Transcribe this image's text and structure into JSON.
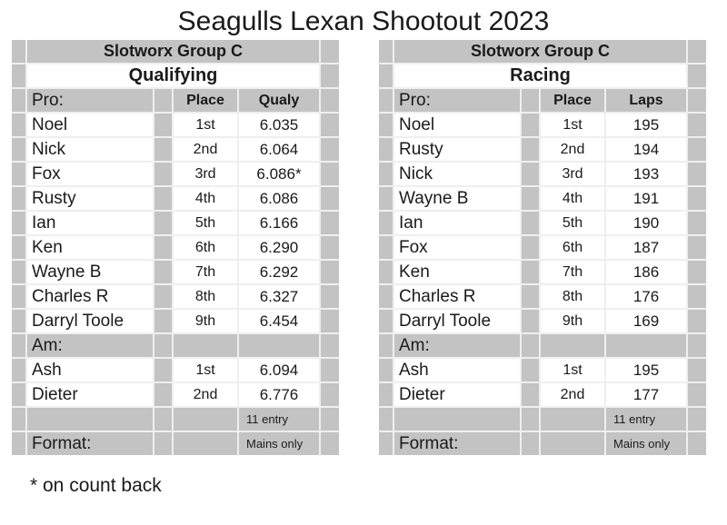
{
  "title": "Seagulls Lexan Shootout 2023",
  "footnote": "* on count back",
  "colors": {
    "cell_gray": "#c3c3c3",
    "gridline": "#efefef",
    "text": "#1a1a1a",
    "page_bg": "#ffffff"
  },
  "tables": [
    {
      "group": "Slotworx Group C",
      "session": "Qualifying",
      "columns": {
        "name": "Pro:",
        "place": "Place",
        "result": "Qualy"
      },
      "pro_rows": [
        {
          "name": "Noel",
          "place": "1st",
          "result": "6.035"
        },
        {
          "name": "Nick",
          "place": "2nd",
          "result": "6.064"
        },
        {
          "name": "Fox",
          "place": "3rd",
          "result": "6.086*"
        },
        {
          "name": "Rusty",
          "place": "4th",
          "result": "6.086"
        },
        {
          "name": "Ian",
          "place": "5th",
          "result": "6.166"
        },
        {
          "name": "Ken",
          "place": "6th",
          "result": "6.290"
        },
        {
          "name": "Wayne B",
          "place": "7th",
          "result": "6.292"
        },
        {
          "name": "Charles R",
          "place": "8th",
          "result": "6.327"
        },
        {
          "name": "Darryl Toole",
          "place": "9th",
          "result": "6.454"
        }
      ],
      "am_label": "Am:",
      "am_rows": [
        {
          "name": "Ash",
          "place": "1st",
          "result": "6.094"
        },
        {
          "name": "Dieter",
          "place": "2nd",
          "result": "6.776"
        }
      ],
      "entry": "11 entry",
      "format_label": "Format:",
      "format_value": "Mains only"
    },
    {
      "group": "Slotworx Group C",
      "session": "Racing",
      "columns": {
        "name": "Pro:",
        "place": "Place",
        "result": "Laps"
      },
      "pro_rows": [
        {
          "name": "Noel",
          "place": "1st",
          "result": "195"
        },
        {
          "name": "Rusty",
          "place": "2nd",
          "result": "194"
        },
        {
          "name": "Nick",
          "place": "3rd",
          "result": "193"
        },
        {
          "name": "Wayne B",
          "place": "4th",
          "result": "191"
        },
        {
          "name": "Ian",
          "place": "5th",
          "result": "190"
        },
        {
          "name": "Fox",
          "place": "6th",
          "result": "187"
        },
        {
          "name": "Ken",
          "place": "7th",
          "result": "186"
        },
        {
          "name": "Charles R",
          "place": "8th",
          "result": "176"
        },
        {
          "name": "Darryl Toole",
          "place": "9th",
          "result": "169"
        }
      ],
      "am_label": "Am:",
      "am_rows": [
        {
          "name": "Ash",
          "place": "1st",
          "result": "195"
        },
        {
          "name": "Dieter",
          "place": "2nd",
          "result": "177"
        }
      ],
      "entry": "11 entry",
      "format_label": "Format:",
      "format_value": "Mains only"
    }
  ]
}
